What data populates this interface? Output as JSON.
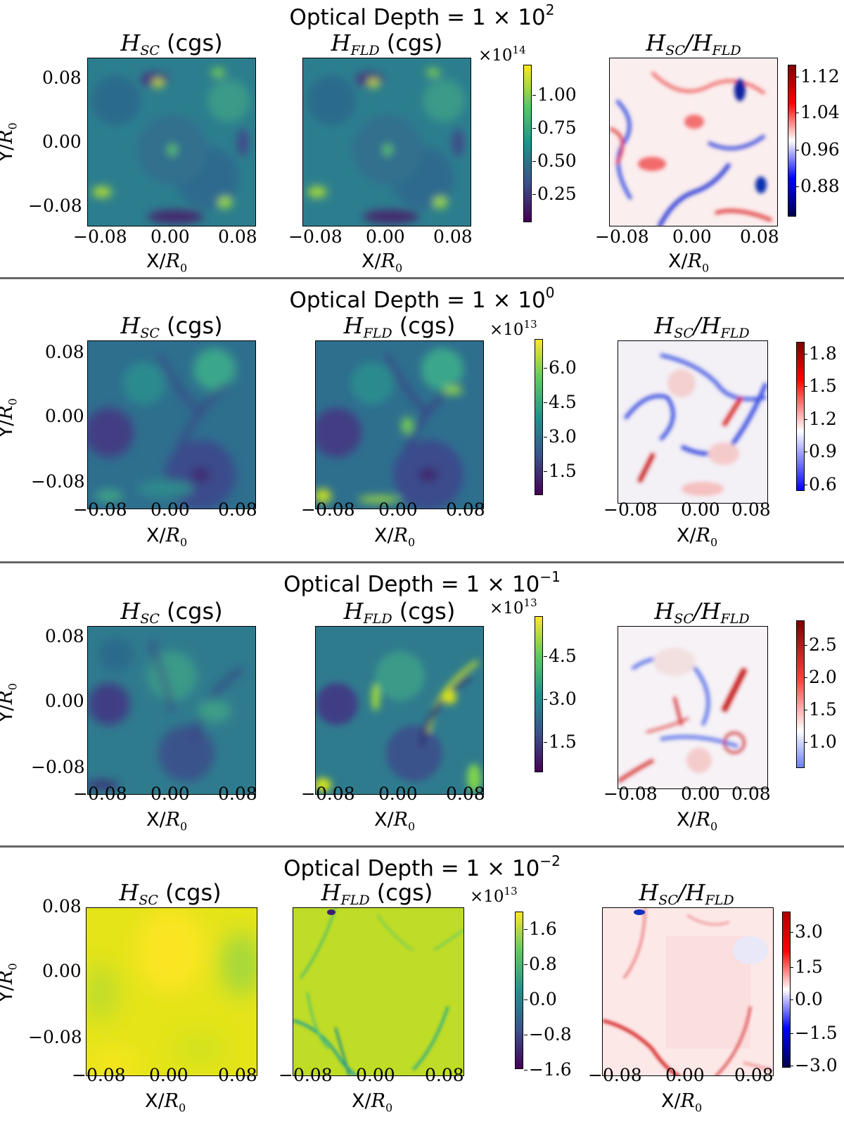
{
  "figure": {
    "panel_titles": {
      "sc": "H",
      "sc_sub": "SC",
      "fld": "H",
      "fld_sub": "FLD",
      "units": "(cgs)",
      "ratio_sep": "/"
    },
    "axis": {
      "x_label": "X/",
      "y_label": "Y/",
      "r0": "R",
      "r0_sub": "0",
      "x_ticks": [
        "−0.08",
        "0.00",
        "0.08"
      ],
      "y_ticks": [
        "0.08",
        "0.00",
        "−0.08"
      ]
    },
    "rows": [
      {
        "title_prefix": "Optical Depth = 1 × 10",
        "title_exp": "2",
        "multiplier_base": "×10",
        "multiplier_exp": "14",
        "h_ticks": [
          "1.00",
          "0.75",
          "0.50",
          "0.25"
        ],
        "ratio_ticks": [
          "1.12",
          "1.04",
          "0.96",
          "0.88"
        ]
      },
      {
        "title_prefix": "Optical Depth = 1 × 10",
        "title_exp": "0",
        "multiplier_base": "×10",
        "multiplier_exp": "13",
        "h_ticks": [
          "6.0",
          "4.5",
          "3.0",
          "1.5"
        ],
        "ratio_ticks": [
          "1.8",
          "1.5",
          "1.2",
          "0.9",
          "0.6"
        ]
      },
      {
        "title_prefix": "Optical Depth = 1 × 10",
        "title_exp": "−1",
        "multiplier_base": "×10",
        "multiplier_exp": "13",
        "h_ticks": [
          "4.5",
          "3.0",
          "1.5"
        ],
        "ratio_ticks": [
          "2.5",
          "2.0",
          "1.5",
          "1.0"
        ]
      },
      {
        "title_prefix": "Optical Depth = 1 × 10",
        "title_exp": "−2",
        "multiplier_base": "×10",
        "multiplier_exp": "13",
        "h_ticks": [
          "1.6",
          "0.8",
          "0.0",
          "−0.8",
          "−1.6"
        ],
        "ratio_ticks": [
          "3.0",
          "1.5",
          "0.0",
          "−1.5",
          "−3.0"
        ]
      }
    ],
    "colormaps": {
      "viridis": [
        "#440154",
        "#3b528b",
        "#21918c",
        "#5ec962",
        "#fde725"
      ],
      "seismic_like": [
        "#00004c",
        "#0000ff",
        "#ffffff",
        "#ff0000",
        "#800000"
      ]
    }
  }
}
